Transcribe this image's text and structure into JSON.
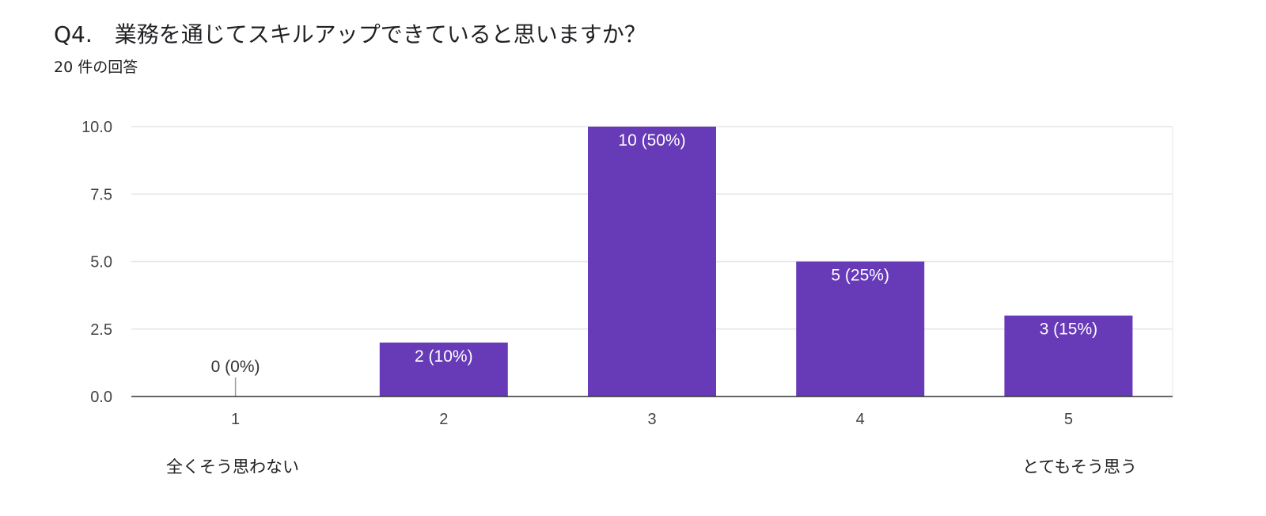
{
  "header": {
    "title": "Q4.　業務を通じてスキルアップできていると思いますか？",
    "response_count": "20 件の回答"
  },
  "scale": {
    "low_label": "全くそう思わない",
    "high_label": "とてもそう思う"
  },
  "chart_data": {
    "type": "bar",
    "categories": [
      "1",
      "2",
      "3",
      "4",
      "5"
    ],
    "values": [
      0,
      2,
      10,
      5,
      3
    ],
    "data_labels": [
      "0 (0%)",
      "2 (10%)",
      "10 (50%)",
      "5 (25%)",
      "3 (15%)"
    ],
    "yticks": [
      "0.0",
      "2.5",
      "5.0",
      "7.5",
      "10.0"
    ],
    "ytick_values": [
      0,
      2.5,
      5,
      7.5,
      10
    ],
    "ylim": [
      0,
      10
    ],
    "grid": true,
    "bar_color": "#673ab7",
    "zero_bar_color": "#9e9e9e"
  }
}
